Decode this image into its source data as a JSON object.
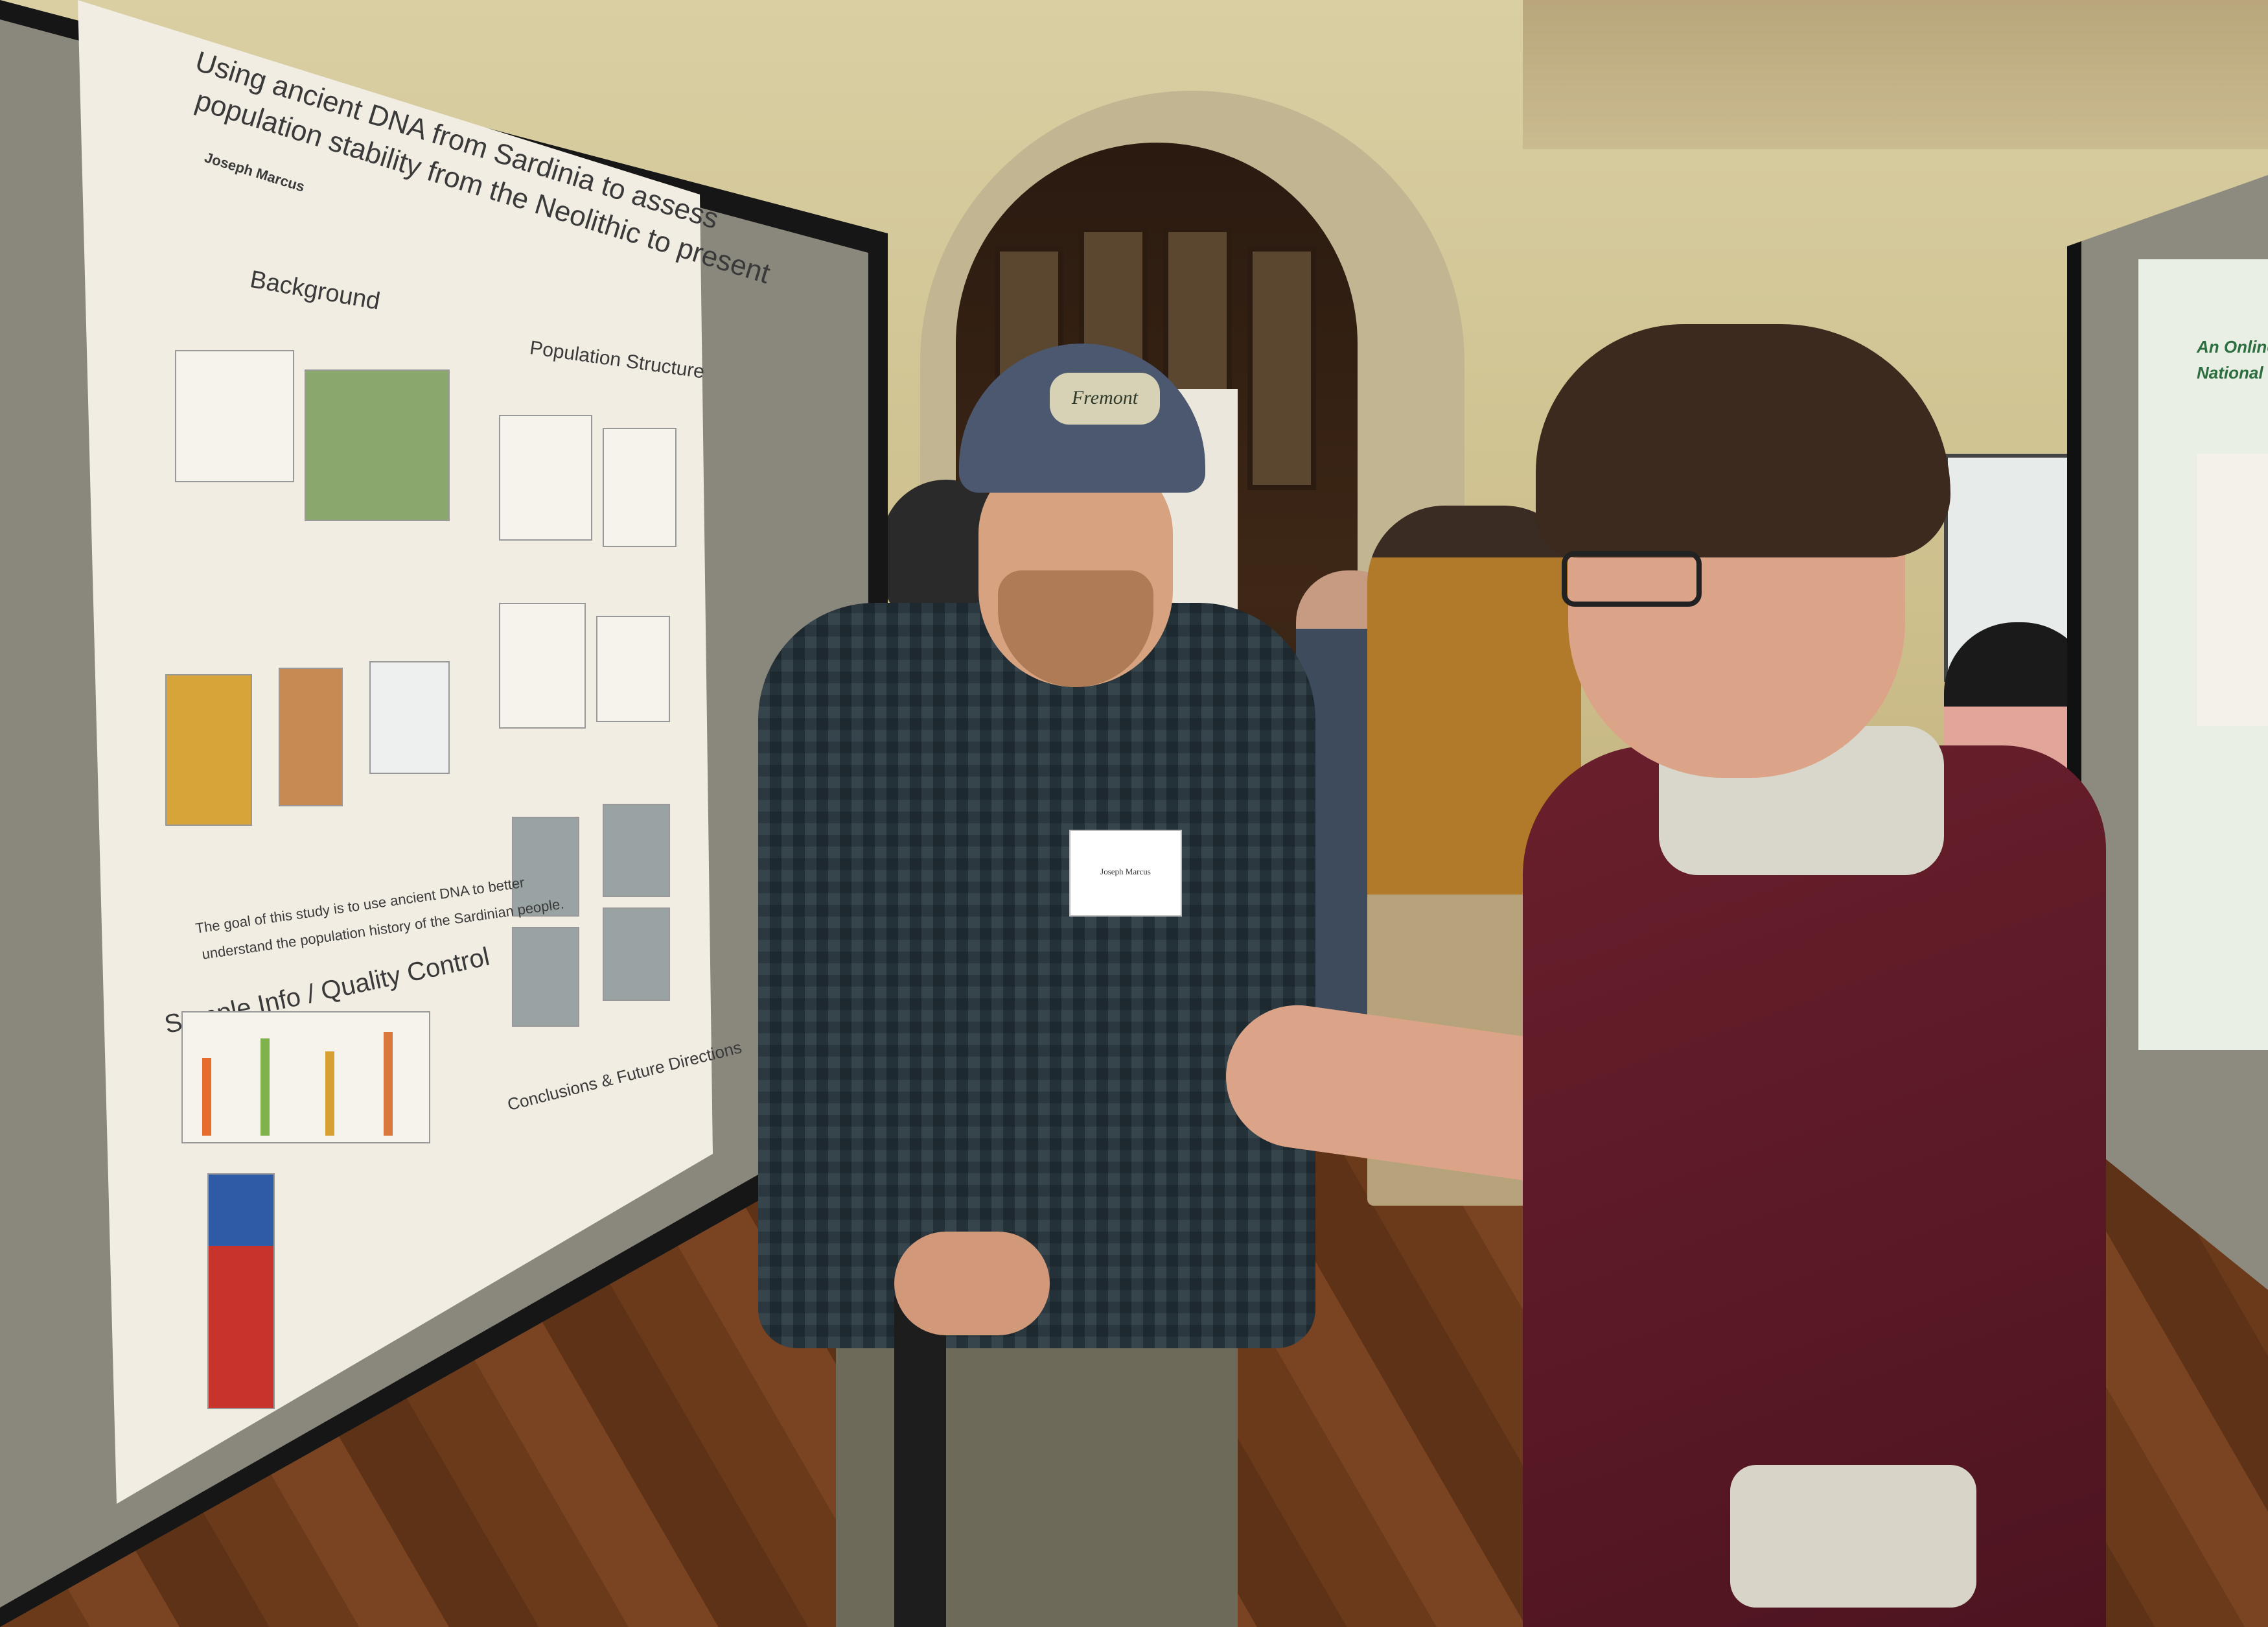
{
  "poster_left": {
    "title_line1": "Using ancient DNA from Sardinia to assess",
    "title_line2": "population stability from the Neolithic to present",
    "authors": "Joseph Marcus",
    "sections": {
      "background": "Background",
      "population_structure": "Population Structure",
      "sample_info": "Sample Info / Quality Control",
      "conclusions": "Conclusions & Future Directions"
    },
    "goal_text_line1": "The goal of this study is to use ancient DNA to better",
    "goal_text_line2": "understand the population history of the Sardinian people."
  },
  "poster_right": {
    "title_line1": "An Online GIS",
    "title_line2": "National Park S"
  },
  "name_tag": {
    "name": "Joseph Marcus"
  },
  "cap_patch": {
    "text": "Fremont"
  }
}
